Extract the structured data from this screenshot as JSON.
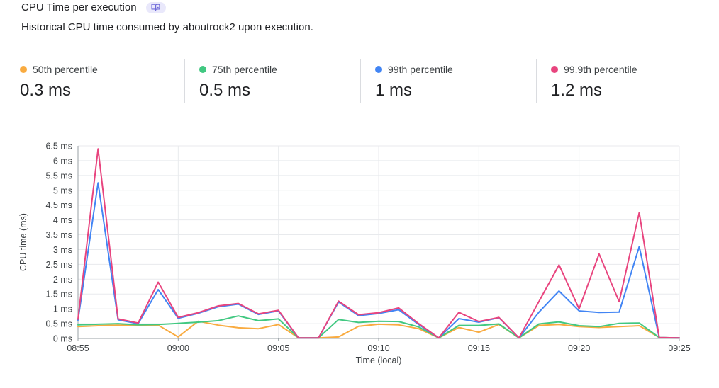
{
  "header": {
    "title": "CPU Time per execution",
    "subtitle": "Historical CPU time consumed by aboutrock2 upon execution.",
    "badge_icon": "open-book",
    "badge_bg": "#e9e8fb",
    "badge_icon_color": "#6e69d8"
  },
  "stats": [
    {
      "label": "50th percentile",
      "value": "0.3 ms",
      "color": "#F9AB40"
    },
    {
      "label": "75th percentile",
      "value": "0.5 ms",
      "color": "#41C881"
    },
    {
      "label": "99th percentile",
      "value": "1 ms",
      "color": "#4285F4"
    },
    {
      "label": "99.9th percentile",
      "value": "1.2 ms",
      "color": "#E8447E"
    }
  ],
  "chart_data": {
    "type": "line",
    "title": "CPU Time per execution",
    "xlabel": "Time (local)",
    "ylabel": "CPU time (ms)",
    "ylim": [
      0,
      6.5
    ],
    "grid": true,
    "legend_position": "stats-row-above",
    "x": [
      "08:55",
      "08:56",
      "08:57",
      "08:58",
      "08:59",
      "09:00",
      "09:01",
      "09:02",
      "09:03",
      "09:04",
      "09:05",
      "09:06",
      "09:07",
      "09:08",
      "09:09",
      "09:10",
      "09:11",
      "09:12",
      "09:13",
      "09:14",
      "09:15",
      "09:16",
      "09:17",
      "09:18",
      "09:19",
      "09:20",
      "09:21",
      "09:22",
      "09:23",
      "09:24",
      "09:25"
    ],
    "x_tick_labels": [
      "08:55",
      "09:00",
      "09:05",
      "09:10",
      "09:15",
      "09:20",
      "09:25"
    ],
    "x_tick_minutes": [
      0,
      5,
      10,
      15,
      20,
      25,
      30
    ],
    "y_tick_labels": [
      "0 ms",
      "0.5 ms",
      "1 ms",
      "1.5 ms",
      "2 ms",
      "2.5 ms",
      "3 ms",
      "3.5 ms",
      "4 ms",
      "4.5 ms",
      "5 ms",
      "5.5 ms",
      "6 ms",
      "6.5 ms"
    ],
    "y_tick_values": [
      0,
      0.5,
      1,
      1.5,
      2,
      2.5,
      3,
      3.5,
      4,
      4.5,
      5,
      5.5,
      6,
      6.5
    ],
    "series": [
      {
        "name": "50th percentile",
        "color": "#F9AB40",
        "values": [
          0.4,
          0.43,
          0.45,
          0.43,
          0.45,
          0.05,
          0.58,
          0.45,
          0.36,
          0.33,
          0.47,
          0.02,
          0.02,
          0.05,
          0.41,
          0.48,
          0.46,
          0.33,
          0.02,
          0.37,
          0.21,
          0.47,
          0.02,
          0.44,
          0.47,
          0.4,
          0.37,
          0.4,
          0.43,
          0.03,
          0.02
        ]
      },
      {
        "name": "75th percentile",
        "color": "#41C881",
        "values": [
          0.46,
          0.48,
          0.5,
          0.46,
          0.47,
          0.51,
          0.55,
          0.6,
          0.76,
          0.6,
          0.66,
          0.02,
          0.02,
          0.64,
          0.54,
          0.58,
          0.57,
          0.39,
          0.02,
          0.44,
          0.44,
          0.49,
          0.02,
          0.49,
          0.56,
          0.43,
          0.4,
          0.51,
          0.52,
          0.03,
          0.02
        ]
      },
      {
        "name": "99th percentile",
        "color": "#4285F4",
        "values": [
          0.62,
          5.25,
          0.63,
          0.5,
          1.65,
          0.68,
          0.85,
          1.07,
          1.16,
          0.81,
          0.93,
          0.02,
          0.02,
          1.23,
          0.77,
          0.84,
          0.97,
          0.47,
          0.02,
          0.67,
          0.55,
          0.7,
          0.02,
          0.89,
          1.6,
          0.93,
          0.88,
          0.89,
          3.1,
          0.03,
          0.02
        ]
      },
      {
        "name": "99.9th percentile",
        "color": "#E8447E",
        "values": [
          0.65,
          6.4,
          0.66,
          0.52,
          1.9,
          0.71,
          0.87,
          1.1,
          1.18,
          0.83,
          0.95,
          0.02,
          0.02,
          1.26,
          0.8,
          0.87,
          1.03,
          0.5,
          0.02,
          0.88,
          0.57,
          0.71,
          0.02,
          1.25,
          2.48,
          1.0,
          2.85,
          1.24,
          4.25,
          0.03,
          0.02
        ]
      }
    ],
    "colors": {
      "gridline": "#e8eaed",
      "axis": "#9aa0a6",
      "tick_text": "#3c4043"
    }
  }
}
